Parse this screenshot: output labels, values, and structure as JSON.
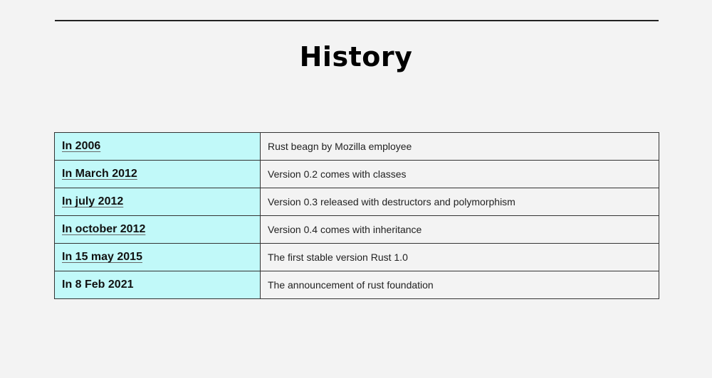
{
  "title": "History",
  "rows": [
    {
      "date": "In 2006",
      "event": "Rust beagn by Mozilla employee",
      "link": true
    },
    {
      "date": "In March 2012",
      "event": "Version 0.2 comes with classes",
      "link": true
    },
    {
      "date": "In july 2012",
      "event": "Version 0.3 released with destructors and polymorphism",
      "link": true
    },
    {
      "date": "In october 2012",
      "event": "Version 0.4 comes with inheritance",
      "link": true
    },
    {
      "date": "In 15 may 2015",
      "event": "The first stable version Rust 1.0",
      "link": true
    },
    {
      "date": "In 8 Feb 2021",
      "event": "The announcement of rust foundation",
      "link": false
    }
  ]
}
